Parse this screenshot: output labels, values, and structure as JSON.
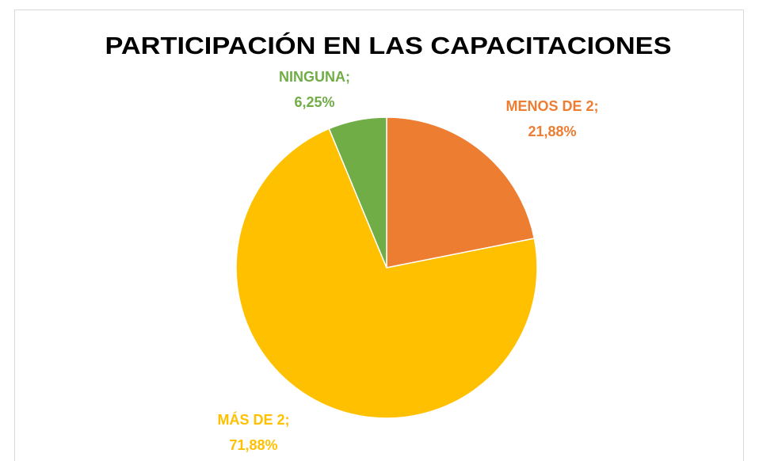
{
  "chart_data": {
    "type": "pie",
    "title": "PARTICIPACIÓN EN LAS CAPACITACIONES",
    "categories": [
      "MENOS DE 2;",
      "MÁS DE 2;",
      "NINGUNA;"
    ],
    "values": [
      21.88,
      71.88,
      6.25
    ],
    "value_labels": [
      "21,88%",
      "71,88%",
      "6,25%"
    ],
    "colors": [
      "#ED7D31",
      "#FFC000",
      "#70AD47"
    ]
  }
}
